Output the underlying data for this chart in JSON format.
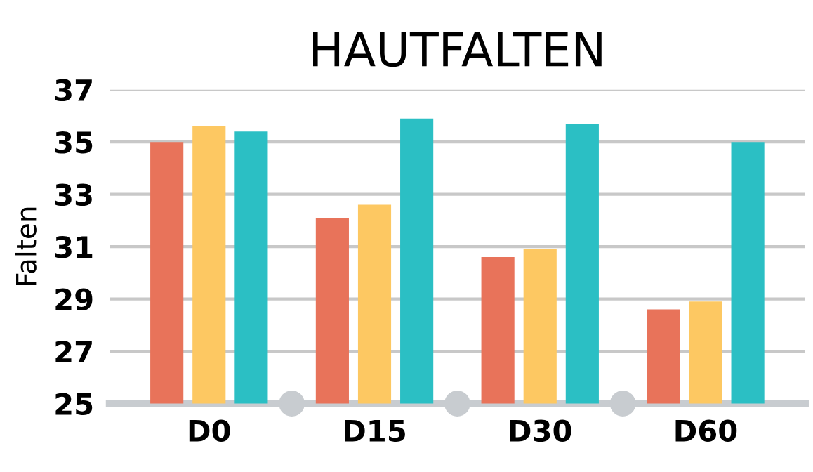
{
  "chart_data": {
    "type": "bar",
    "title": "HAUTFALTEN",
    "ylabel": "Falten",
    "categories": [
      "D0",
      "D15",
      "D30",
      "D60"
    ],
    "series": [
      {
        "color": "#e8735a",
        "values": [
          35.0,
          32.1,
          30.6,
          28.6
        ]
      },
      {
        "color": "#fdc862",
        "values": [
          35.6,
          32.6,
          30.9,
          28.9
        ]
      },
      {
        "color": "#2bbfc4",
        "values": [
          35.4,
          35.9,
          35.7,
          35.0
        ]
      }
    ],
    "ylim": [
      25,
      37
    ],
    "yticks": [
      25,
      27,
      29,
      31,
      33,
      35,
      37
    ],
    "grid": "y"
  }
}
